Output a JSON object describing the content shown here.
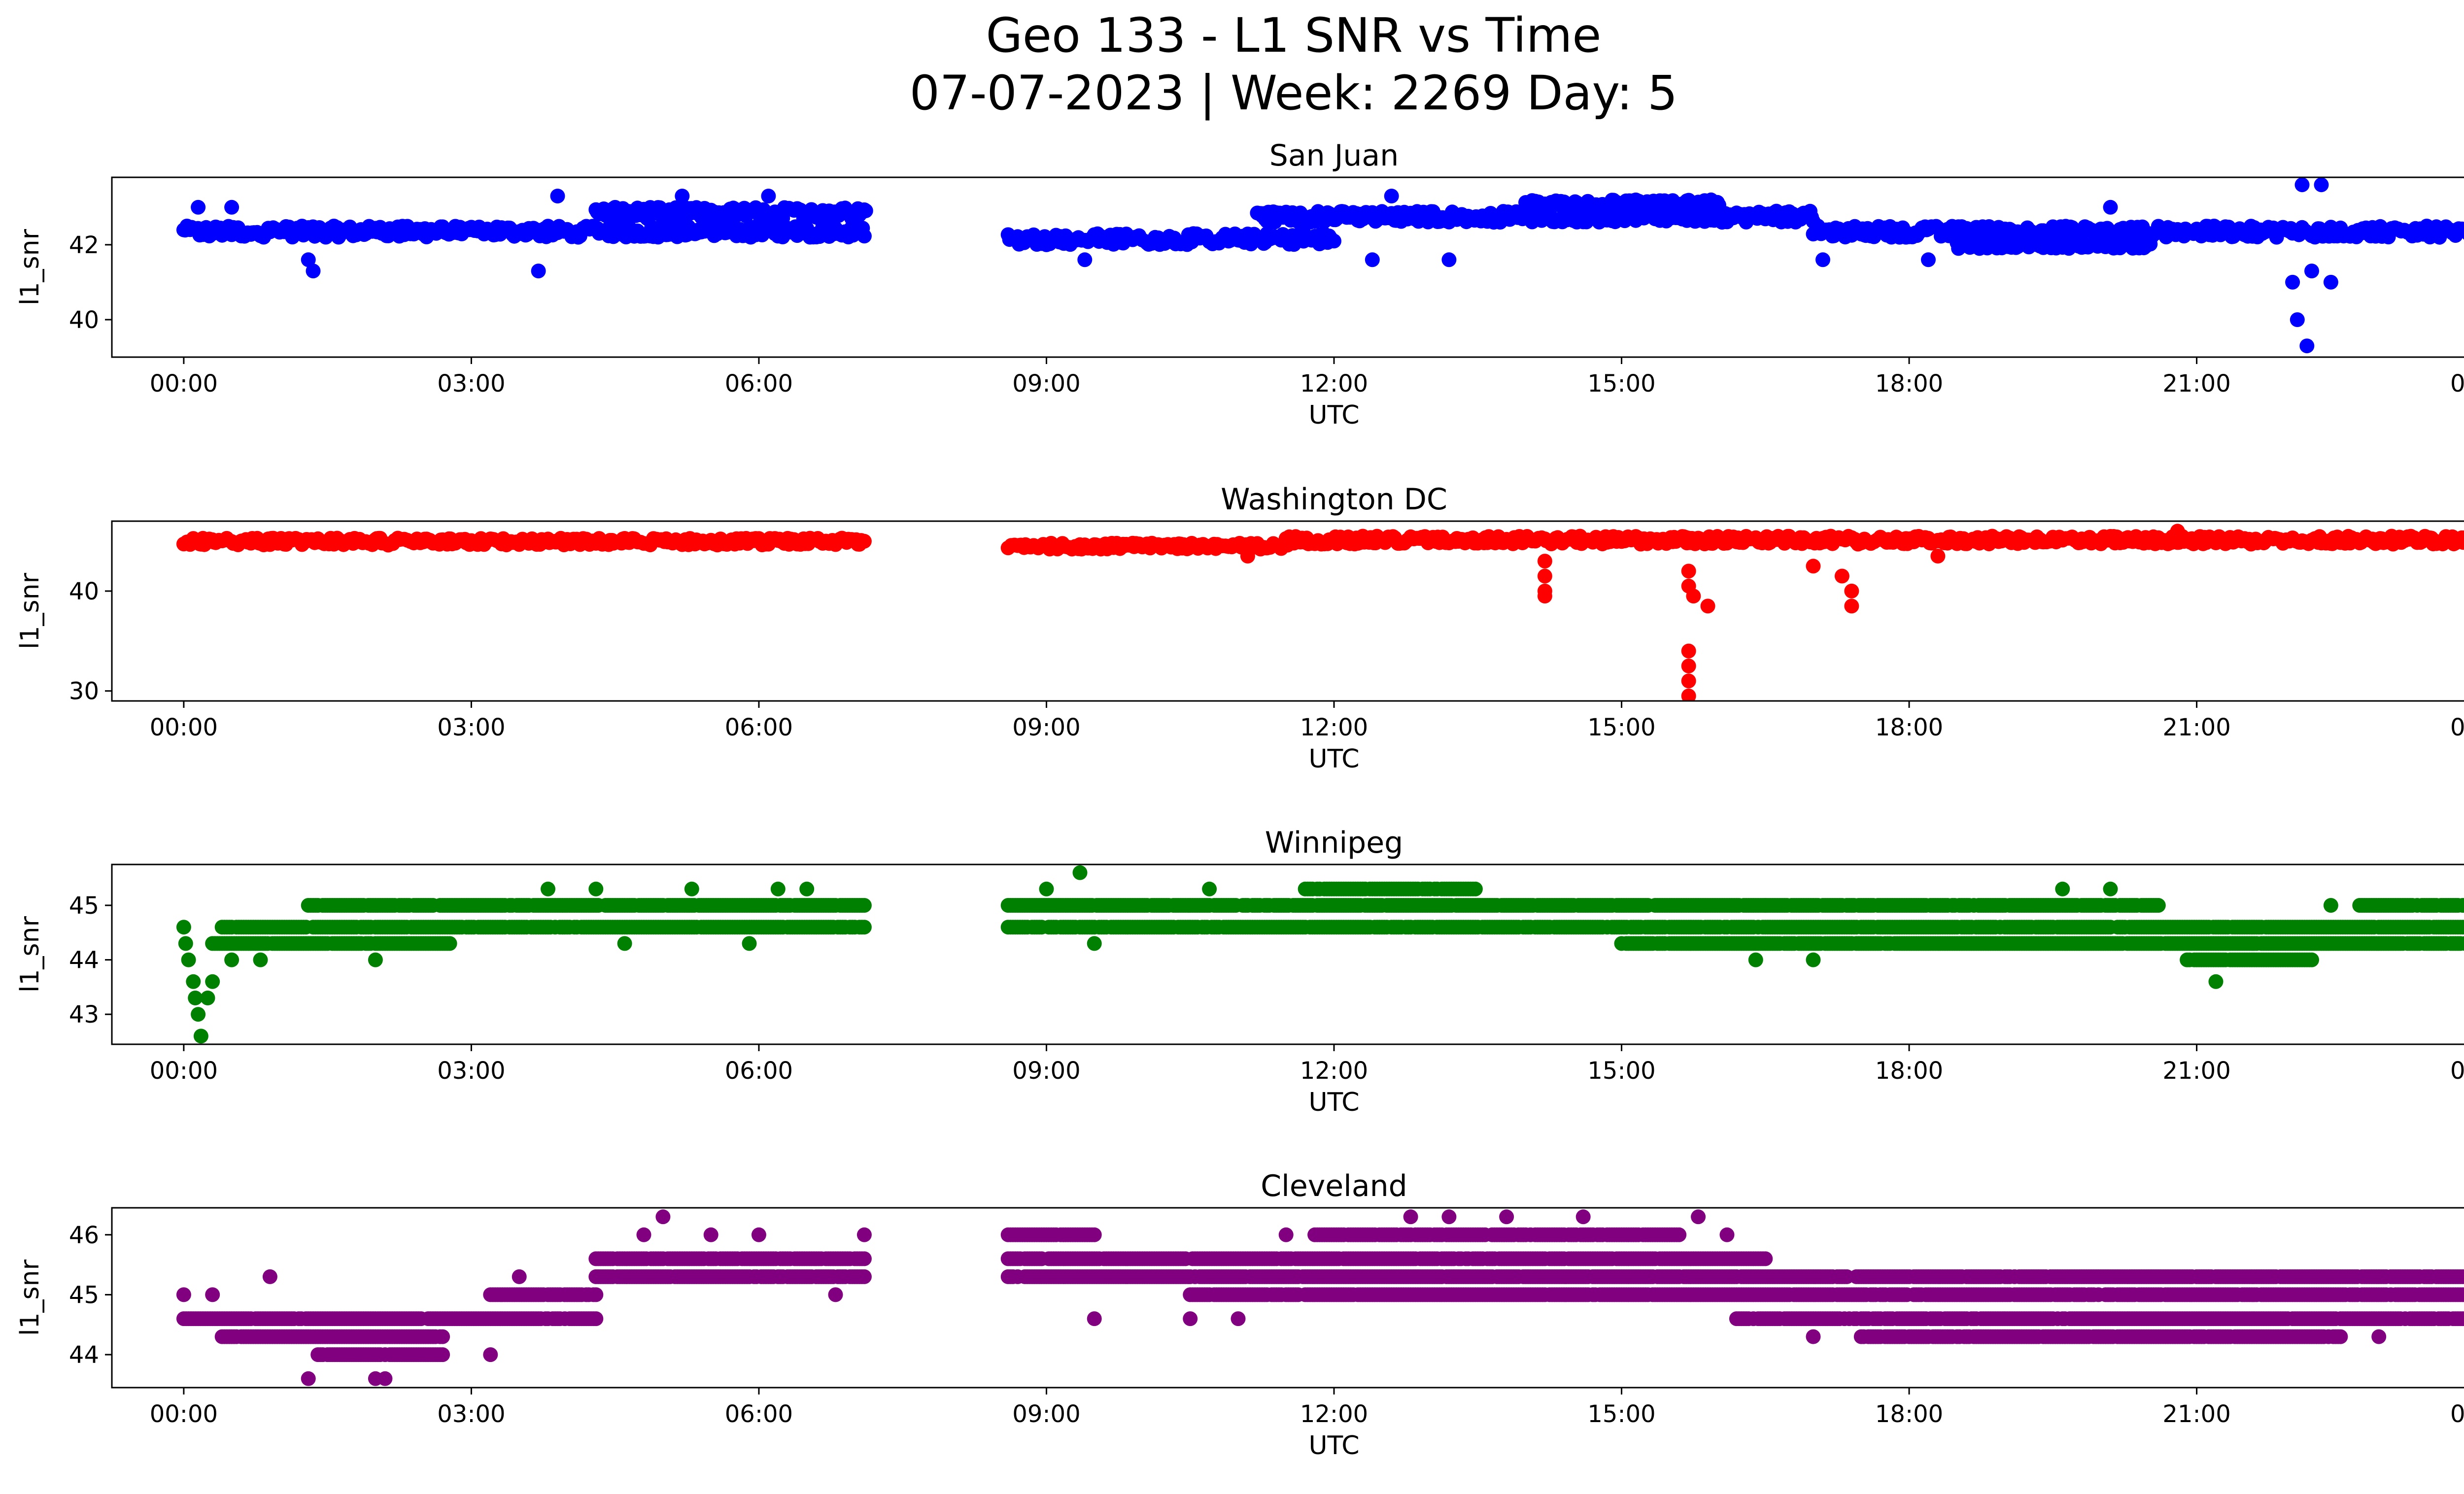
{
  "title_line1": "Geo 133 - L1 SNR vs Time",
  "title_line2": "07-07-2023 | Week: 2269 Day: 5",
  "chart_data": [
    {
      "type": "scatter",
      "title": "San Juan",
      "xlabel": "UTC",
      "ylabel": "l1_snr",
      "color": "#0000ff",
      "xlim_hours": [
        -0.75,
        24.75
      ],
      "ylim": [
        39.0,
        43.8
      ],
      "xticks": [
        "00:00",
        "03:00",
        "06:00",
        "09:00",
        "12:00",
        "15:00",
        "18:00",
        "21:00",
        "00:00"
      ],
      "yticks": [
        40,
        42
      ],
      "data_gap_hours": [
        7.1,
        8.6
      ],
      "bands": [
        {
          "from": 0.0,
          "to": 7.1,
          "y": [
            42.2,
            42.5
          ]
        },
        {
          "from": 4.3,
          "to": 7.1,
          "y": [
            42.7,
            43.0
          ]
        },
        {
          "from": 8.6,
          "to": 12.0,
          "y": [
            42.0,
            42.3
          ]
        },
        {
          "from": 11.2,
          "to": 17.0,
          "y": [
            42.6,
            42.9
          ]
        },
        {
          "from": 14.0,
          "to": 16.0,
          "y": [
            43.0,
            43.2
          ]
        },
        {
          "from": 17.0,
          "to": 24.0,
          "y": [
            42.2,
            42.5
          ]
        },
        {
          "from": 18.5,
          "to": 20.5,
          "y": [
            41.9,
            42.1
          ]
        }
      ],
      "outliers": [
        {
          "x": 0.15,
          "y": 43.0
        },
        {
          "x": 0.5,
          "y": 43.0
        },
        {
          "x": 1.3,
          "y": 41.6
        },
        {
          "x": 1.35,
          "y": 41.3
        },
        {
          "x": 3.7,
          "y": 41.3
        },
        {
          "x": 3.9,
          "y": 43.3
        },
        {
          "x": 5.2,
          "y": 43.3
        },
        {
          "x": 6.1,
          "y": 43.3
        },
        {
          "x": 9.4,
          "y": 41.6
        },
        {
          "x": 12.4,
          "y": 41.6
        },
        {
          "x": 12.6,
          "y": 43.3
        },
        {
          "x": 13.2,
          "y": 41.6
        },
        {
          "x": 17.1,
          "y": 41.6
        },
        {
          "x": 18.2,
          "y": 41.6
        },
        {
          "x": 20.1,
          "y": 43.0
        },
        {
          "x": 22.05,
          "y": 40.0
        },
        {
          "x": 22.15,
          "y": 39.3
        },
        {
          "x": 22.1,
          "y": 43.6
        },
        {
          "x": 22.3,
          "y": 43.6
        },
        {
          "x": 22.0,
          "y": 41.0
        },
        {
          "x": 22.4,
          "y": 41.0
        },
        {
          "x": 22.2,
          "y": 41.3
        }
      ]
    },
    {
      "type": "scatter",
      "title": "Washington DC",
      "xlabel": "UTC",
      "ylabel": "l1_snr",
      "color": "#ff0000",
      "xlim_hours": [
        -0.75,
        24.75
      ],
      "ylim": [
        29.0,
        47.0
      ],
      "xticks": [
        "00:00",
        "03:00",
        "06:00",
        "09:00",
        "12:00",
        "15:00",
        "18:00",
        "21:00",
        "00:00"
      ],
      "yticks": [
        30,
        40
      ],
      "data_gap_hours": [
        7.1,
        8.6
      ],
      "bands": [
        {
          "from": 0.0,
          "to": 7.1,
          "y": [
            44.6,
            45.3
          ]
        },
        {
          "from": 8.6,
          "to": 11.5,
          "y": [
            44.2,
            44.8
          ]
        },
        {
          "from": 11.5,
          "to": 24.0,
          "y": [
            44.7,
            45.5
          ]
        }
      ],
      "outliers": [
        {
          "x": 14.2,
          "y": 43.0
        },
        {
          "x": 14.2,
          "y": 41.5
        },
        {
          "x": 14.2,
          "y": 40.0
        },
        {
          "x": 14.2,
          "y": 39.5
        },
        {
          "x": 15.7,
          "y": 42.0
        },
        {
          "x": 15.7,
          "y": 40.5
        },
        {
          "x": 15.75,
          "y": 39.5
        },
        {
          "x": 15.9,
          "y": 38.5
        },
        {
          "x": 15.7,
          "y": 34.0
        },
        {
          "x": 15.7,
          "y": 32.5
        },
        {
          "x": 15.7,
          "y": 31.0
        },
        {
          "x": 15.7,
          "y": 29.5
        },
        {
          "x": 17.0,
          "y": 42.5
        },
        {
          "x": 17.3,
          "y": 41.5
        },
        {
          "x": 17.4,
          "y": 40.0
        },
        {
          "x": 17.4,
          "y": 38.5
        },
        {
          "x": 20.8,
          "y": 46.0
        },
        {
          "x": 11.1,
          "y": 43.5
        },
        {
          "x": 18.3,
          "y": 43.5
        }
      ]
    },
    {
      "type": "scatter",
      "title": "Winnipeg",
      "xlabel": "UTC",
      "ylabel": "l1_snr",
      "color": "#008000",
      "xlim_hours": [
        -0.75,
        24.75
      ],
      "ylim": [
        42.45,
        45.75
      ],
      "xticks": [
        "00:00",
        "03:00",
        "06:00",
        "09:00",
        "12:00",
        "15:00",
        "18:00",
        "21:00",
        "00:00"
      ],
      "yticks": [
        43,
        44,
        45
      ],
      "data_gap_hours": [
        7.1,
        8.6
      ],
      "levels": [
        43.6,
        44.0,
        44.3,
        44.6,
        45.0,
        45.3
      ],
      "tracks": [
        {
          "from": 0.4,
          "to": 7.1,
          "y": 44.6
        },
        {
          "from": 1.3,
          "to": 7.1,
          "y": 45.0
        },
        {
          "from": 0.3,
          "to": 2.8,
          "y": 44.3
        },
        {
          "from": 8.6,
          "to": 16.5,
          "y": 45.0
        },
        {
          "from": 8.6,
          "to": 24.0,
          "y": 44.6
        },
        {
          "from": 11.7,
          "to": 13.5,
          "y": 45.3
        },
        {
          "from": 15.0,
          "to": 24.0,
          "y": 44.3
        },
        {
          "from": 16.5,
          "to": 20.6,
          "y": 45.0
        },
        {
          "from": 20.9,
          "to": 22.2,
          "y": 44.0
        },
        {
          "from": 22.7,
          "to": 24.0,
          "y": 45.0
        }
      ],
      "outliers": [
        {
          "x": 0.0,
          "y": 44.6
        },
        {
          "x": 0.02,
          "y": 44.3
        },
        {
          "x": 0.05,
          "y": 44.0
        },
        {
          "x": 0.1,
          "y": 43.6
        },
        {
          "x": 0.12,
          "y": 43.3
        },
        {
          "x": 0.15,
          "y": 43.0
        },
        {
          "x": 0.18,
          "y": 42.6
        },
        {
          "x": 0.25,
          "y": 43.3
        },
        {
          "x": 0.3,
          "y": 43.6
        },
        {
          "x": 0.5,
          "y": 44.0
        },
        {
          "x": 0.8,
          "y": 44.0
        },
        {
          "x": 2.0,
          "y": 44.0
        },
        {
          "x": 3.8,
          "y": 45.3
        },
        {
          "x": 4.3,
          "y": 45.3
        },
        {
          "x": 4.6,
          "y": 44.3
        },
        {
          "x": 5.3,
          "y": 45.3
        },
        {
          "x": 5.9,
          "y": 44.3
        },
        {
          "x": 6.2,
          "y": 45.3
        },
        {
          "x": 6.5,
          "y": 45.3
        },
        {
          "x": 9.35,
          "y": 45.6
        },
        {
          "x": 9.0,
          "y": 45.3
        },
        {
          "x": 9.5,
          "y": 44.3
        },
        {
          "x": 10.7,
          "y": 45.3
        },
        {
          "x": 12.3,
          "y": 44.6
        },
        {
          "x": 16.4,
          "y": 44.0
        },
        {
          "x": 17.0,
          "y": 44.0
        },
        {
          "x": 19.6,
          "y": 45.3
        },
        {
          "x": 20.1,
          "y": 45.3
        },
        {
          "x": 21.2,
          "y": 43.6
        },
        {
          "x": 22.4,
          "y": 45.0
        }
      ]
    },
    {
      "type": "scatter",
      "title": "Cleveland",
      "xlabel": "UTC",
      "ylabel": "l1_snr",
      "color": "#800080",
      "xlim_hours": [
        -0.75,
        24.75
      ],
      "ylim": [
        43.45,
        46.45
      ],
      "xticks": [
        "00:00",
        "03:00",
        "06:00",
        "09:00",
        "12:00",
        "15:00",
        "18:00",
        "21:00",
        "00:00"
      ],
      "yticks": [
        44,
        45,
        46
      ],
      "data_gap_hours": [
        7.1,
        8.6
      ],
      "levels": [
        43.6,
        44.0,
        44.3,
        44.6,
        45.0,
        45.3,
        45.6,
        46.0,
        46.3
      ],
      "tracks": [
        {
          "from": 0.0,
          "to": 4.3,
          "y": 44.6
        },
        {
          "from": 0.4,
          "to": 2.7,
          "y": 44.3
        },
        {
          "from": 1.4,
          "to": 2.7,
          "y": 44.0
        },
        {
          "from": 3.2,
          "to": 4.3,
          "y": 45.0
        },
        {
          "from": 4.3,
          "to": 7.1,
          "y": 45.3
        },
        {
          "from": 4.3,
          "to": 7.1,
          "y": 45.6
        },
        {
          "from": 8.6,
          "to": 9.5,
          "y": 46.0
        },
        {
          "from": 8.6,
          "to": 16.5,
          "y": 45.6
        },
        {
          "from": 8.6,
          "to": 24.0,
          "y": 45.3
        },
        {
          "from": 11.8,
          "to": 15.6,
          "y": 46.0
        },
        {
          "from": 10.5,
          "to": 24.0,
          "y": 45.0
        },
        {
          "from": 16.2,
          "to": 24.0,
          "y": 44.6
        },
        {
          "from": 17.5,
          "to": 22.5,
          "y": 44.3
        }
      ],
      "outliers": [
        {
          "x": 0.0,
          "y": 45.0
        },
        {
          "x": 0.3,
          "y": 45.0
        },
        {
          "x": 0.9,
          "y": 45.3
        },
        {
          "x": 1.3,
          "y": 43.6
        },
        {
          "x": 2.0,
          "y": 43.6
        },
        {
          "x": 2.1,
          "y": 43.6
        },
        {
          "x": 3.2,
          "y": 44.0
        },
        {
          "x": 3.5,
          "y": 45.3
        },
        {
          "x": 4.8,
          "y": 46.0
        },
        {
          "x": 5.0,
          "y": 46.3
        },
        {
          "x": 5.5,
          "y": 46.0
        },
        {
          "x": 6.0,
          "y": 46.0
        },
        {
          "x": 7.1,
          "y": 46.0
        },
        {
          "x": 6.8,
          "y": 45.0
        },
        {
          "x": 9.5,
          "y": 44.6
        },
        {
          "x": 10.5,
          "y": 44.6
        },
        {
          "x": 11.0,
          "y": 44.6
        },
        {
          "x": 11.5,
          "y": 46.0
        },
        {
          "x": 12.8,
          "y": 46.3
        },
        {
          "x": 13.2,
          "y": 46.3
        },
        {
          "x": 13.8,
          "y": 46.3
        },
        {
          "x": 14.6,
          "y": 46.3
        },
        {
          "x": 15.8,
          "y": 46.3
        },
        {
          "x": 16.1,
          "y": 46.0
        },
        {
          "x": 17.0,
          "y": 44.3
        },
        {
          "x": 22.9,
          "y": 44.3
        }
      ]
    }
  ]
}
